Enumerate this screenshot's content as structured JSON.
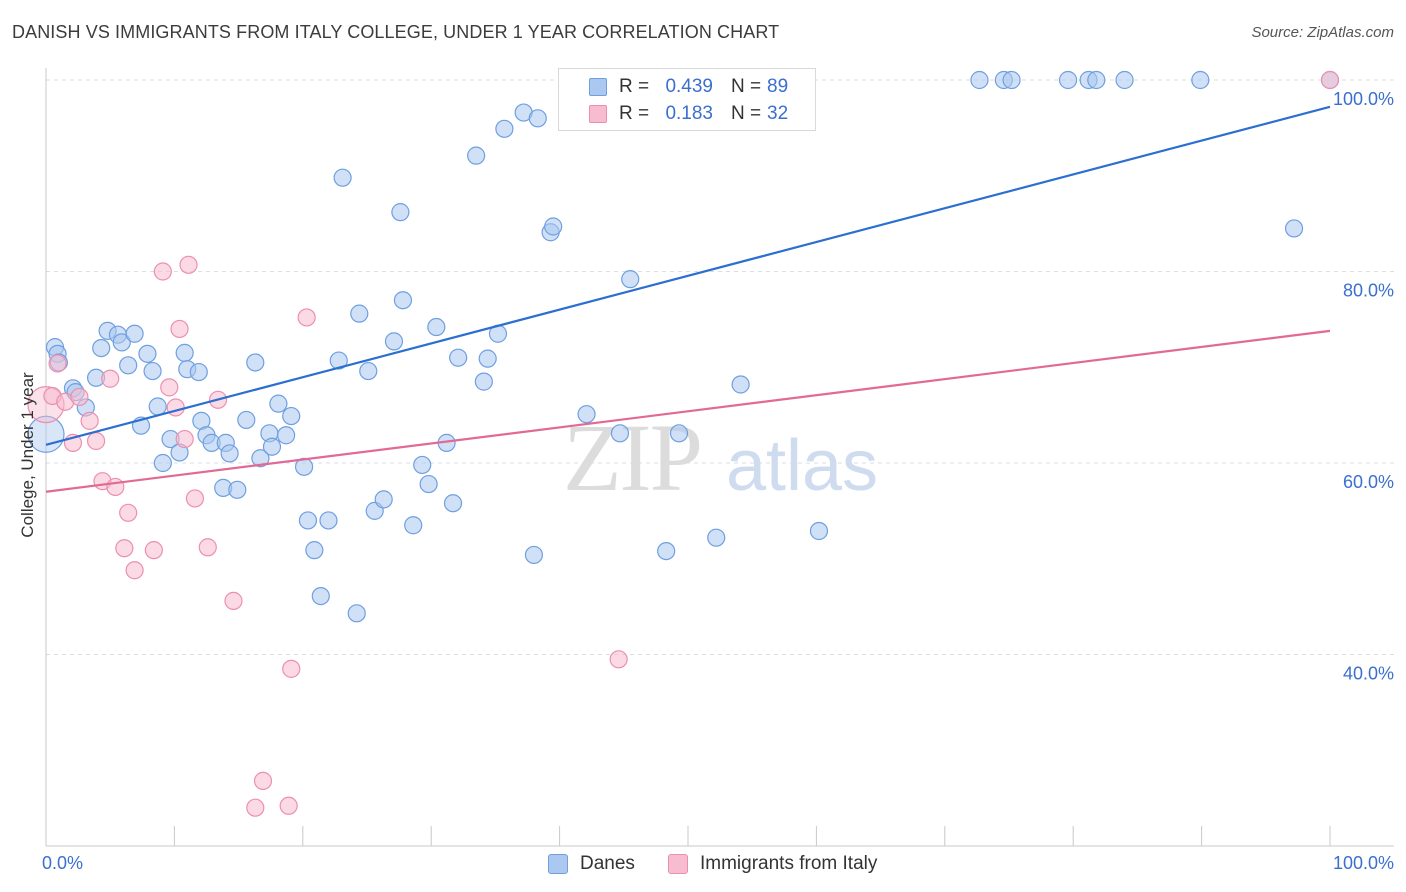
{
  "title": "DANISH VS IMMIGRANTS FROM ITALY COLLEGE, UNDER 1 YEAR CORRELATION CHART",
  "source": "Source: ZipAtlas.com",
  "watermark": {
    "zip": "ZIP",
    "atlas": "atlas"
  },
  "legend": {
    "series": [
      {
        "r_label": "R =",
        "r_value": "0.439",
        "n_label": "N =",
        "n_value": "89"
      },
      {
        "r_label": "R =",
        "r_value": "0.183",
        "n_label": "N =",
        "n_value": "32"
      }
    ]
  },
  "bottom_legend": [
    "Danes",
    "Immigrants from Italy"
  ],
  "colors": {
    "danes_fill": "#aac8f0",
    "danes_stroke": "#6f9fe0",
    "danes_line": "#2b6fd0",
    "italy_fill": "#f7bcd0",
    "italy_stroke": "#ec8fae",
    "italy_line": "#e06a95",
    "tick_label": "#3a6fd0",
    "grid": "#d8dde6"
  },
  "chart_data": {
    "type": "scatter",
    "title": "DANISH VS IMMIGRANTS FROM ITALY COLLEGE, UNDER 1 YEAR CORRELATION CHART",
    "xlabel": "",
    "ylabel": "College, Under 1 year",
    "xlim": [
      0,
      100
    ],
    "ylim": [
      20,
      100
    ],
    "x_tick_labels": [
      "0.0%",
      "100.0%"
    ],
    "y_ticks": [
      40,
      60,
      80,
      100
    ],
    "y_tick_labels": [
      "40.0%",
      "60.0%",
      "80.0%",
      "100.0%"
    ],
    "grid": true,
    "legend_position": "top-center",
    "series": [
      {
        "name": "Danes",
        "r": 0.439,
        "n": 89,
        "trend": {
          "x": [
            0,
            100
          ],
          "y": [
            61.9,
            97.2
          ]
        },
        "points": [
          [
            0.0,
            63.0
          ],
          [
            0.7,
            72.1
          ],
          [
            0.9,
            71.4
          ],
          [
            1.0,
            70.5
          ],
          [
            2.1,
            67.8
          ],
          [
            2.3,
            67.4
          ],
          [
            3.1,
            65.8
          ],
          [
            3.9,
            68.9
          ],
          [
            4.3,
            72.0
          ],
          [
            4.8,
            73.8
          ],
          [
            5.6,
            73.4
          ],
          [
            5.9,
            72.6
          ],
          [
            6.4,
            70.2
          ],
          [
            6.9,
            73.5
          ],
          [
            7.4,
            63.9
          ],
          [
            7.9,
            71.4
          ],
          [
            8.3,
            69.6
          ],
          [
            8.7,
            65.9
          ],
          [
            9.1,
            60.0
          ],
          [
            9.7,
            62.5
          ],
          [
            10.4,
            61.1
          ],
          [
            10.8,
            71.5
          ],
          [
            11.0,
            69.8
          ],
          [
            11.9,
            69.5
          ],
          [
            12.1,
            64.4
          ],
          [
            12.5,
            62.9
          ],
          [
            12.9,
            62.1
          ],
          [
            13.8,
            57.4
          ],
          [
            14.0,
            62.1
          ],
          [
            14.3,
            61.0
          ],
          [
            14.9,
            57.2
          ],
          [
            15.6,
            64.5
          ],
          [
            16.3,
            70.5
          ],
          [
            16.7,
            60.5
          ],
          [
            17.4,
            63.1
          ],
          [
            17.6,
            61.7
          ],
          [
            18.1,
            66.2
          ],
          [
            18.7,
            62.9
          ],
          [
            19.1,
            64.9
          ],
          [
            20.1,
            59.6
          ],
          [
            20.4,
            54.0
          ],
          [
            20.9,
            50.9
          ],
          [
            21.4,
            46.1
          ],
          [
            22.0,
            54.0
          ],
          [
            22.8,
            70.7
          ],
          [
            23.1,
            89.8
          ],
          [
            24.2,
            44.3
          ],
          [
            24.4,
            75.6
          ],
          [
            25.1,
            69.6
          ],
          [
            25.6,
            55.0
          ],
          [
            26.3,
            56.2
          ],
          [
            27.1,
            72.7
          ],
          [
            27.6,
            86.2
          ],
          [
            27.8,
            77.0
          ],
          [
            28.6,
            53.5
          ],
          [
            29.3,
            59.8
          ],
          [
            29.8,
            57.8
          ],
          [
            30.4,
            74.2
          ],
          [
            31.2,
            62.1
          ],
          [
            31.7,
            55.8
          ],
          [
            32.1,
            71.0
          ],
          [
            33.5,
            92.1
          ],
          [
            34.1,
            68.5
          ],
          [
            34.4,
            70.9
          ],
          [
            35.2,
            73.5
          ],
          [
            35.7,
            94.9
          ],
          [
            37.2,
            96.6
          ],
          [
            38.0,
            50.4
          ],
          [
            38.3,
            96.0
          ],
          [
            39.3,
            84.1
          ],
          [
            39.5,
            84.7
          ],
          [
            42.1,
            65.1
          ],
          [
            44.7,
            63.1
          ],
          [
            45.5,
            79.2
          ],
          [
            48.3,
            50.8
          ],
          [
            49.3,
            63.1
          ],
          [
            52.2,
            52.2
          ],
          [
            54.1,
            68.2
          ],
          [
            60.2,
            52.9
          ],
          [
            72.7,
            100.0
          ],
          [
            74.6,
            100.0
          ],
          [
            75.2,
            100.0
          ],
          [
            79.6,
            100.0
          ],
          [
            81.2,
            100.0
          ],
          [
            81.8,
            100.0
          ],
          [
            84.0,
            100.0
          ],
          [
            89.9,
            100.0
          ],
          [
            97.2,
            84.5
          ],
          [
            100.0,
            100.0
          ]
        ]
      },
      {
        "name": "Immigrants from Italy",
        "r": 0.183,
        "n": 32,
        "trend": {
          "x": [
            0,
            100
          ],
          "y": [
            57.0,
            73.8
          ]
        },
        "points": [
          [
            0.0,
            66.1
          ],
          [
            0.5,
            67.0
          ],
          [
            0.9,
            70.4
          ],
          [
            1.5,
            66.4
          ],
          [
            2.1,
            62.1
          ],
          [
            2.6,
            66.9
          ],
          [
            3.4,
            64.4
          ],
          [
            3.9,
            62.3
          ],
          [
            4.4,
            58.1
          ],
          [
            5.0,
            68.8
          ],
          [
            5.4,
            57.5
          ],
          [
            6.1,
            51.1
          ],
          [
            6.4,
            54.8
          ],
          [
            6.9,
            48.8
          ],
          [
            8.4,
            50.9
          ],
          [
            9.1,
            80.0
          ],
          [
            9.6,
            67.9
          ],
          [
            10.1,
            65.8
          ],
          [
            10.4,
            74.0
          ],
          [
            10.8,
            62.5
          ],
          [
            11.1,
            80.7
          ],
          [
            11.6,
            56.3
          ],
          [
            12.6,
            51.2
          ],
          [
            13.4,
            66.6
          ],
          [
            14.6,
            45.6
          ],
          [
            16.3,
            24.0
          ],
          [
            16.9,
            26.8
          ],
          [
            18.9,
            24.2
          ],
          [
            19.1,
            38.5
          ],
          [
            20.3,
            75.2
          ],
          [
            44.6,
            39.5
          ],
          [
            100.0,
            100.0
          ]
        ]
      }
    ]
  }
}
